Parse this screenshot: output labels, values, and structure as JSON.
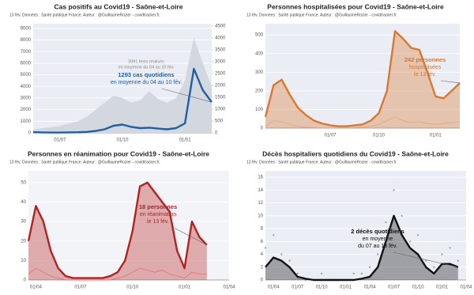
{
  "chart_data": [
    {
      "type": "line",
      "title": "Cas positifs au Covid19 - Saône-et-Loire",
      "subtitle": "13 fév. Données : Santé publique France. Auteur : @GuillaumeRozier - covidtracker.fr.",
      "categories": [
        null,
        null,
        null,
        "01/07",
        null,
        null,
        null,
        null,
        null,
        null,
        "01/10",
        null,
        null,
        null,
        null,
        null,
        null,
        "01/01",
        null,
        null,
        null
      ],
      "series": [
        {
          "style": "area",
          "color": "#d3d7de",
          "values": [
            300,
            400,
            500,
            600,
            800,
            1000,
            1400,
            2000,
            2600,
            3200,
            3000,
            2600,
            2800,
            3600,
            2900,
            2600,
            3000,
            4500,
            8200,
            6000,
            3991
          ]
        },
        {
          "style": "line",
          "axis": "y2",
          "color": "#1f5fa8",
          "values": [
            30,
            20,
            15,
            15,
            20,
            25,
            40,
            80,
            150,
            300,
            350,
            250,
            200,
            220,
            180,
            150,
            200,
            400,
            2700,
            1800,
            1293
          ]
        }
      ],
      "ylim": [
        0,
        9400
      ],
      "yticks": [
        0,
        1000,
        2000,
        3000,
        4000,
        5000,
        6000,
        7000,
        8000,
        9000
      ],
      "y2lim": [
        0,
        4600
      ],
      "y2ticks": [
        0,
        500,
        1000,
        1500,
        2000,
        2500,
        3000,
        3500,
        4000,
        4500
      ],
      "grid": true,
      "annotations": [
        {
          "color": "#888888",
          "lines": [
            "3991 tests réalisés",
            "en moyenne du 04 au 10 fév."
          ]
        },
        {
          "color": "#1f5fa8",
          "lines": [
            "1293 cas quotidiens",
            "en moyenne du 04 au 10 fév."
          ]
        }
      ]
    },
    {
      "type": "line",
      "title": "Personnes hospitalisées pour Covid19 - Saône-et-Loire",
      "subtitle": "13 fév. Données : Santé publique France. Auteur : @GuillaumeRozier - covidtracker.fr.",
      "categories": [
        null,
        null,
        null,
        null,
        null,
        null,
        null,
        null,
        "01/07",
        null,
        null,
        null,
        null,
        null,
        "01/10",
        null,
        null,
        null,
        null,
        null,
        null,
        "01/01",
        null,
        null,
        null
      ],
      "series": [
        {
          "style": "area_line",
          "color": "#d9782d",
          "values": [
            60,
            230,
            260,
            180,
            110,
            70,
            40,
            25,
            15,
            10,
            10,
            15,
            20,
            40,
            80,
            200,
            520,
            480,
            430,
            420,
            300,
            170,
            160,
            200,
            242
          ]
        },
        {
          "style": "line",
          "color": "#e8a878",
          "values": [
            10,
            40,
            35,
            20,
            10,
            5,
            3,
            2,
            2,
            2,
            2,
            3,
            5,
            10,
            20,
            40,
            60,
            40,
            30,
            35,
            25,
            20,
            25,
            30,
            30
          ]
        }
      ],
      "ylim": [
        0,
        560
      ],
      "yticks": [
        0,
        100,
        200,
        300,
        400,
        500
      ],
      "grid": true,
      "annotations": [
        {
          "color": "#d9782d",
          "lines": [
            "242 personnes",
            "hospitalisées",
            "le 13 fév."
          ]
        }
      ]
    },
    {
      "type": "line",
      "title": "Personnes en réanimation pour Covid19 - Saône-et-Loire",
      "subtitle": "13 fév. Données : Santé publique France. Auteur : @GuillaumeRozier - covidtracker.fr.",
      "categories": [
        null,
        "01/04",
        null,
        null,
        null,
        null,
        null,
        "01/07",
        null,
        null,
        null,
        null,
        null,
        null,
        "01/10",
        null,
        null,
        null,
        null,
        null,
        null,
        "01/01",
        null,
        null,
        null,
        null,
        null,
        "01/04"
      ],
      "series": [
        {
          "style": "area_line",
          "color": "#b5211f",
          "values": [
            20,
            38,
            30,
            15,
            6,
            2,
            1,
            1,
            1,
            1,
            1,
            2,
            4,
            10,
            25,
            48,
            50,
            45,
            40,
            35,
            15,
            6,
            30,
            22,
            18,
            null,
            null,
            null
          ]
        },
        {
          "style": "line",
          "color": "#e07a78",
          "values": [
            3,
            6,
            4,
            2,
            1,
            0,
            0,
            0,
            0,
            0,
            0,
            0,
            1,
            2,
            4,
            6,
            5,
            4,
            5,
            3,
            2,
            1,
            4,
            3,
            3,
            null,
            null,
            null
          ]
        }
      ],
      "ylim": [
        0,
        56
      ],
      "yticks": [
        0,
        10,
        20,
        30,
        40,
        50
      ],
      "grid": true,
      "annotations": [
        {
          "color": "#b5211f",
          "lines": [
            "18 personnes",
            "en réanimation",
            "le 13 fév."
          ]
        }
      ]
    },
    {
      "type": "line",
      "title": "Décès hospitaliers quotidiens du Covid19 - Saône-et-Loire",
      "subtitle": "13 fév. Données : Santé publique France. Auteur : @GuillaumeRozier - covidtracker.fr.",
      "categories": [
        null,
        "01/04",
        null,
        null,
        "01/07",
        null,
        null,
        "01/10",
        null,
        null,
        "01/01",
        null,
        null,
        "01/04",
        null,
        null,
        "01/07",
        null,
        null,
        "01/10",
        null,
        null,
        "01/01",
        null,
        null,
        "01/04"
      ],
      "series": [
        {
          "style": "points",
          "color": "#777777",
          "values": [
            5,
            7,
            4,
            3,
            1,
            0,
            0,
            1,
            0,
            0,
            0,
            1,
            1,
            2,
            4,
            9,
            14,
            10,
            6,
            7,
            3,
            2,
            4,
            5,
            3,
            null
          ]
        },
        {
          "style": "area_line",
          "color": "#111111",
          "values": [
            2,
            3.5,
            3,
            2,
            0.5,
            0.2,
            0,
            0,
            0,
            0,
            0,
            0,
            0.2,
            0.5,
            2,
            6,
            10,
            7,
            5,
            4,
            2,
            1,
            2.5,
            2.5,
            2,
            null
          ]
        }
      ],
      "ylim": [
        0,
        17
      ],
      "yticks": [
        0,
        2,
        4,
        6,
        8,
        10,
        12,
        14,
        16
      ],
      "grid": true,
      "annotations": [
        {
          "color": "#111111",
          "lines": [
            "2 décès quotidiens",
            "en moyenne",
            "du 07 au 13 fév."
          ]
        }
      ]
    }
  ]
}
